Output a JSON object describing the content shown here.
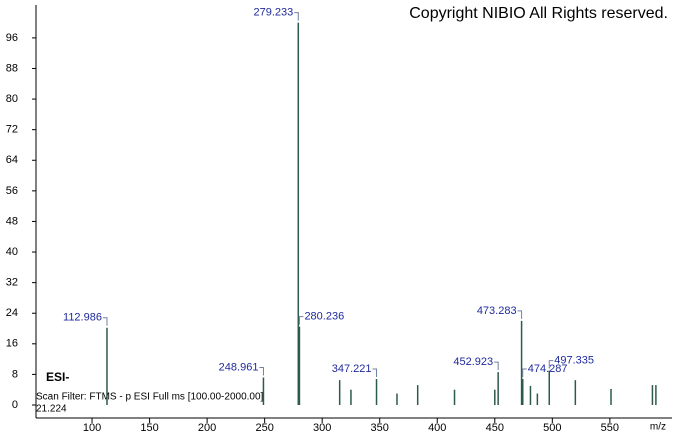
{
  "chart_data": {
    "type": "spectrum",
    "title": "Copyright NIBIO All Rights reserved.",
    "mode": "ESI-",
    "scan_filter": "Scan Filter: FTMS - p ESI Full ms [100.00-2000.00]",
    "retention_time": "21.224",
    "x_label": "m/z",
    "x": [
      112.986,
      248.961,
      279.233,
      280.236,
      315.2,
      325.0,
      347.221,
      365.0,
      383.0,
      415.0,
      450.0,
      452.923,
      473.283,
      474.287,
      481.0,
      487.0,
      497.335,
      520.0,
      551.0,
      587.0,
      590.0
    ],
    "x_labels": [
      "112.986",
      "248.961",
      "279.233",
      "280.236",
      null,
      null,
      "347.221",
      null,
      null,
      null,
      null,
      "452.923",
      "473.283",
      "474.287",
      null,
      null,
      "497.335",
      null,
      null,
      null,
      null
    ],
    "values": [
      20.2,
      7.2,
      100,
      20.5,
      6.5,
      4,
      6.8,
      3,
      5.2,
      4,
      4,
      8.6,
      22,
      6.8,
      5,
      3,
      9,
      6.5,
      4.2,
      5.2,
      5.2
    ],
    "color": "#2e5a4c",
    "xlim": [
      51.3,
      604
    ],
    "ylim": [
      -3.4,
      104.6
    ],
    "xticks": [
      100,
      150,
      200,
      250,
      300,
      350,
      400,
      450,
      500,
      550
    ],
    "yticks": [
      0,
      8,
      16,
      24,
      32,
      40,
      48,
      56,
      64,
      72,
      80,
      88,
      96
    ]
  }
}
